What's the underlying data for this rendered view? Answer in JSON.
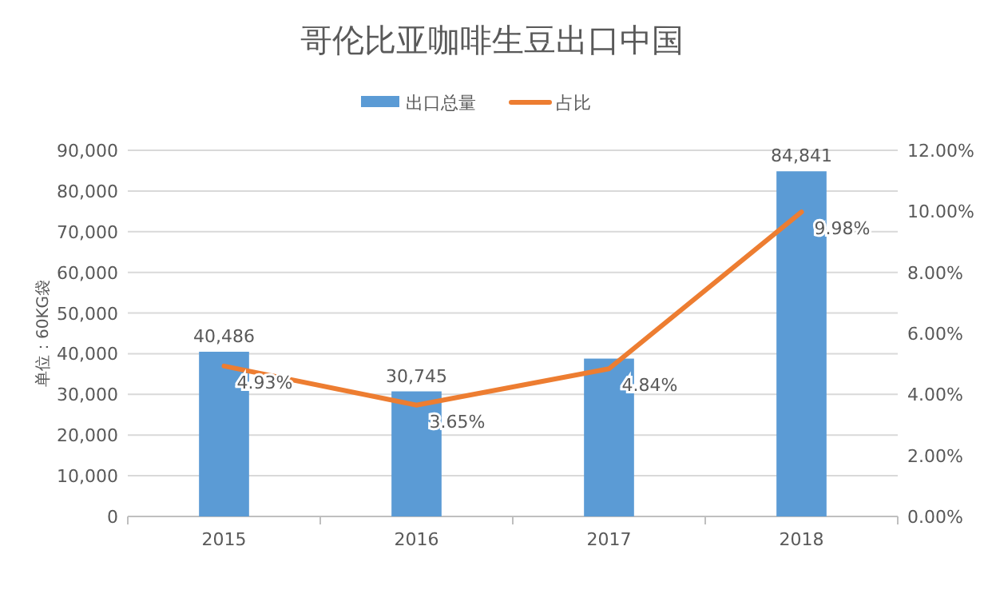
{
  "chart_data": {
    "type": "bar",
    "title": "哥伦比亚咖啡生豆出口中国",
    "ylabel": "单位：60KG袋",
    "categories": [
      "2015",
      "2016",
      "2017",
      "2018"
    ],
    "grid": "y",
    "legend": "top",
    "series": [
      {
        "name": "出口总量",
        "color": "#5b9bd5",
        "values": [
          40486,
          30745,
          38800,
          84841
        ],
        "value_labels": [
          "40,486",
          "30,745",
          null,
          "84,841"
        ]
      },
      {
        "name": "占比",
        "type": "line",
        "axis": "y2",
        "color": "#ed7d31",
        "values": [
          4.93,
          3.65,
          4.84,
          9.98
        ],
        "value_labels": [
          "4.93%",
          "3.65%",
          "4.84%",
          "9.98%"
        ]
      }
    ],
    "ylim": [
      0,
      90000
    ],
    "yticks": [
      0,
      {
        "value": 10000,
        "label": "10,000"
      },
      {
        "value": 20000,
        "label": "20,000"
      },
      {
        "value": 30000,
        "label": "30,000"
      },
      {
        "value": 40000,
        "label": "40,000"
      },
      {
        "value": 50000,
        "label": "50,000"
      },
      {
        "value": 60000,
        "label": "60,000"
      },
      {
        "value": 70000,
        "label": "70,000"
      },
      {
        "value": 80000,
        "label": "80,000"
      },
      {
        "value": 90000,
        "label": "90,000"
      }
    ],
    "y2lim": [
      0,
      12
    ],
    "y2ticks": [
      {
        "value": 0,
        "label": "0.00%"
      },
      {
        "value": 2,
        "label": "2.00%"
      },
      {
        "value": 4,
        "label": "4.00%"
      },
      {
        "value": 6,
        "label": "6.00%"
      },
      {
        "value": 8,
        "label": "8.00%"
      },
      {
        "value": 10,
        "label": "10.00%"
      },
      {
        "value": 12,
        "label": "12.00%"
      }
    ]
  }
}
